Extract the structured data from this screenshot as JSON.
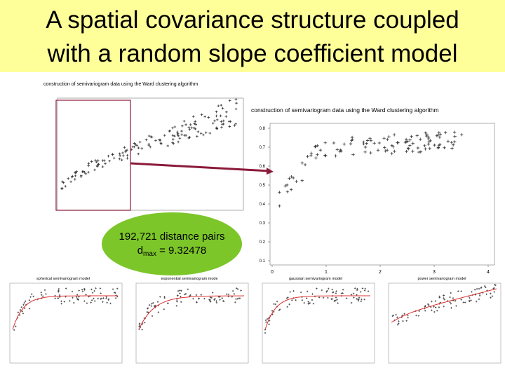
{
  "title": {
    "line1": "A spatial covariance structure coupled",
    "line2": "with a random slope coefficient model"
  },
  "left_plot": {
    "title": "construction of semivariogram data using the Ward clustering algorithm"
  },
  "right_plot": {
    "title": "construction of semivariogram data using the Ward clustering algorithm",
    "yticks": [
      "0.8",
      "0.7",
      "0.6",
      "0.5",
      "0.4",
      "0.3",
      "0.2",
      "0.1"
    ],
    "xticks": [
      "0",
      "1",
      "2",
      "3",
      "4"
    ]
  },
  "callout": {
    "line1": "192,721 distance pairs",
    "symbol": "d",
    "subscript": "max",
    "rest": " = 9.32478"
  },
  "bottom_plots": [
    {
      "title": "spherical semivariogram model"
    },
    {
      "title": "exponential semivariogram mode"
    },
    {
      "title": "gaussian semivariogram model"
    },
    {
      "title": "power semivariogram model"
    }
  ]
}
